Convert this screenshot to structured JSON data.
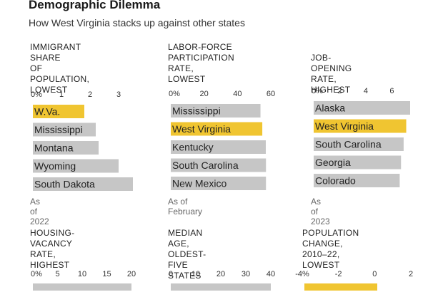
{
  "header": {
    "title": "Demographic Dilemma",
    "subtitle": "How West Virginia stacks up against other states"
  },
  "colors": {
    "highlight": "#f0c531",
    "bar": "#c6c6c6",
    "axis_text": "#333333"
  },
  "chart_data": [
    {
      "type": "bar",
      "orientation": "horizontal",
      "title": "IMMIGRANT SHARE\nOF POPULATION,\nLOWEST",
      "categories": [
        "W.Va.",
        "Mississippi",
        "Montana",
        "Wyoming",
        "South Dakota"
      ],
      "values": [
        1.8,
        2.2,
        2.3,
        3.0,
        3.5
      ],
      "highlight": "W.Va.",
      "xticks": [
        "0%",
        "1",
        "2",
        "3"
      ],
      "xtick_values": [
        0,
        1,
        2,
        3
      ],
      "xlim": [
        0,
        3.5
      ],
      "note": "As of 2022"
    },
    {
      "type": "bar",
      "orientation": "horizontal",
      "title": "LABOR-FORCE\nPARTICIPATION RATE,\nLOWEST",
      "categories": [
        "Mississippi",
        "West Virginia",
        "Kentucky",
        "South Carolina",
        "New Mexico"
      ],
      "values": [
        53.8,
        54.9,
        57.0,
        57.1,
        57.1
      ],
      "highlight": "West Virginia",
      "xticks": [
        "0%",
        "20",
        "40",
        "60"
      ],
      "xtick_values": [
        0,
        20,
        40,
        60
      ],
      "xlim": [
        0,
        60
      ],
      "note": "As of February"
    },
    {
      "type": "bar",
      "orientation": "horizontal",
      "title": "JOB-OPENING RATE,\nHIGHEST",
      "categories": [
        "Alaska",
        "West Virginia",
        "South Carolina",
        "Georgia",
        "Colorado"
      ],
      "values": [
        7.4,
        7.1,
        6.9,
        6.7,
        6.6
      ],
      "highlight": "West Virginia",
      "xticks": [
        "0%",
        "2",
        "4",
        "6"
      ],
      "xtick_values": [
        0,
        2,
        4,
        6
      ],
      "xlim": [
        0,
        7.4
      ],
      "note": "As of 2023"
    },
    {
      "type": "bar",
      "orientation": "horizontal",
      "title": "HOUSING-VACANCY RATE,\nHIGHEST",
      "categories": [],
      "values": [],
      "xticks": [
        "0%",
        "5",
        "10",
        "15",
        "20"
      ],
      "xtick_values": [
        0,
        5,
        10,
        15,
        20
      ],
      "xlim": [
        0,
        20
      ],
      "note": ""
    },
    {
      "type": "bar",
      "orientation": "horizontal",
      "title": "MEDIAN AGE,\nOLDEST-FIVE STATES",
      "categories": [],
      "values": [],
      "xticks": [
        "0",
        "10",
        "20",
        "30",
        "40"
      ],
      "xtick_values": [
        0,
        10,
        20,
        30,
        40
      ],
      "xlim": [
        0,
        40
      ],
      "note": ""
    },
    {
      "type": "bar",
      "orientation": "horizontal",
      "title": "POPULATION CHANGE,\n2010–22, LOWEST",
      "categories": [],
      "values": [],
      "xticks": [
        "-4%",
        "-2",
        "0",
        "2"
      ],
      "xtick_values": [
        -4,
        -2,
        0,
        2
      ],
      "xlim": [
        -4,
        2
      ],
      "note": ""
    }
  ]
}
